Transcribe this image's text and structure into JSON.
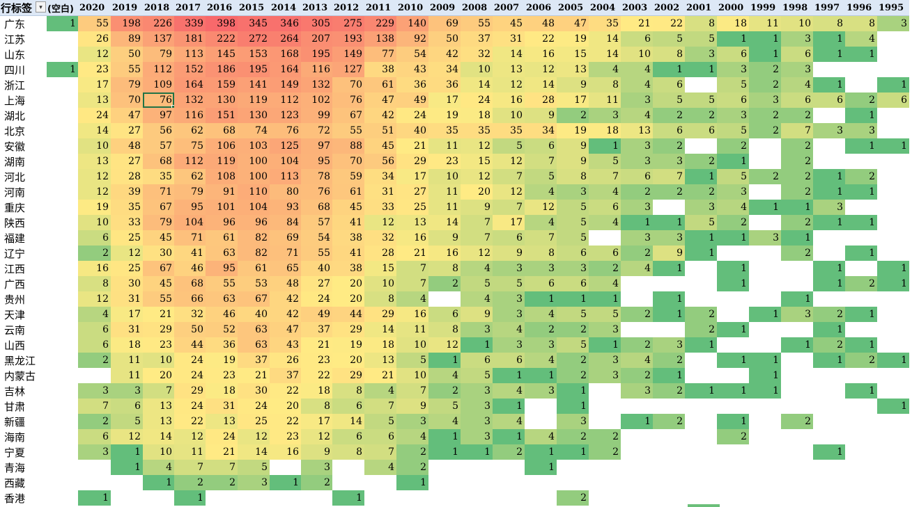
{
  "header": {
    "corner_label": "行标签",
    "filter_icon": "filter-dropdown-icon",
    "blank_label": "(空白)",
    "years": [
      "2020",
      "2019",
      "2018",
      "2017",
      "2016",
      "2015",
      "2014",
      "2013",
      "2012",
      "2011",
      "2010",
      "2009",
      "2008",
      "2007",
      "2006",
      "2005",
      "2004",
      "2003",
      "2002",
      "2001",
      "2000",
      "1999",
      "1998",
      "1997",
      "1996",
      "1995"
    ]
  },
  "rows": [
    {
      "label": "广东",
      "values": [
        1,
        55,
        198,
        226,
        339,
        398,
        345,
        346,
        305,
        275,
        229,
        140,
        69,
        55,
        45,
        48,
        47,
        35,
        21,
        22,
        8,
        18,
        11,
        10,
        8,
        8,
        3
      ]
    },
    {
      "label": "江苏",
      "values": [
        null,
        26,
        89,
        137,
        181,
        222,
        272,
        264,
        207,
        193,
        138,
        92,
        50,
        37,
        31,
        22,
        19,
        14,
        6,
        5,
        5,
        1,
        1,
        3,
        1,
        4,
        null
      ]
    },
    {
      "label": "山东",
      "values": [
        null,
        12,
        50,
        79,
        113,
        145,
        153,
        168,
        195,
        149,
        77,
        54,
        42,
        32,
        14,
        16,
        15,
        14,
        10,
        8,
        3,
        6,
        1,
        6,
        1,
        1,
        null
      ]
    },
    {
      "label": "四川",
      "values": [
        1,
        23,
        55,
        112,
        152,
        186,
        195,
        164,
        116,
        127,
        38,
        43,
        34,
        10,
        13,
        12,
        13,
        4,
        4,
        1,
        1,
        3,
        2,
        3,
        null,
        null,
        null
      ]
    },
    {
      "label": "浙江",
      "values": [
        null,
        17,
        79,
        109,
        164,
        159,
        141,
        149,
        132,
        70,
        61,
        36,
        36,
        14,
        12,
        14,
        9,
        8,
        4,
        6,
        null,
        5,
        2,
        4,
        1,
        null,
        1
      ]
    },
    {
      "label": "上海",
      "values": [
        null,
        13,
        70,
        76,
        132,
        130,
        119,
        112,
        102,
        76,
        47,
        49,
        17,
        24,
        16,
        28,
        17,
        11,
        3,
        5,
        5,
        6,
        3,
        6,
        6,
        2,
        6
      ]
    },
    {
      "label": "湖北",
      "values": [
        null,
        24,
        47,
        97,
        116,
        151,
        130,
        123,
        99,
        67,
        42,
        24,
        19,
        18,
        10,
        9,
        2,
        3,
        4,
        2,
        2,
        3,
        2,
        2,
        null,
        1,
        null
      ]
    },
    {
      "label": "北京",
      "values": [
        null,
        14,
        27,
        56,
        62,
        68,
        74,
        76,
        72,
        55,
        51,
        40,
        35,
        35,
        35,
        34,
        19,
        18,
        13,
        6,
        6,
        5,
        2,
        7,
        3,
        3,
        null
      ]
    },
    {
      "label": "安徽",
      "values": [
        null,
        10,
        48,
        57,
        75,
        106,
        103,
        125,
        97,
        88,
        45,
        21,
        11,
        12,
        5,
        6,
        9,
        1,
        3,
        2,
        null,
        2,
        null,
        2,
        null,
        1,
        1
      ]
    },
    {
      "label": "湖南",
      "values": [
        null,
        13,
        27,
        68,
        112,
        119,
        100,
        104,
        95,
        70,
        56,
        29,
        23,
        15,
        12,
        7,
        9,
        5,
        3,
        3,
        2,
        1,
        null,
        2,
        null,
        null,
        null
      ]
    },
    {
      "label": "河北",
      "values": [
        null,
        12,
        28,
        35,
        62,
        108,
        100,
        113,
        78,
        59,
        34,
        17,
        10,
        12,
        7,
        5,
        8,
        7,
        6,
        7,
        1,
        5,
        2,
        2,
        1,
        2,
        null
      ]
    },
    {
      "label": "河南",
      "values": [
        null,
        12,
        39,
        71,
        79,
        91,
        110,
        80,
        76,
        61,
        31,
        27,
        11,
        20,
        12,
        4,
        3,
        4,
        2,
        2,
        2,
        3,
        null,
        2,
        1,
        1,
        null
      ]
    },
    {
      "label": "重庆",
      "values": [
        null,
        19,
        35,
        67,
        95,
        101,
        104,
        93,
        68,
        45,
        33,
        25,
        11,
        9,
        7,
        12,
        5,
        6,
        3,
        null,
        3,
        4,
        1,
        1,
        3,
        null,
        null
      ]
    },
    {
      "label": "陕西",
      "values": [
        null,
        10,
        33,
        79,
        104,
        96,
        96,
        84,
        57,
        41,
        12,
        13,
        14,
        7,
        17,
        4,
        5,
        4,
        1,
        1,
        5,
        2,
        null,
        2,
        1,
        1,
        null
      ]
    },
    {
      "label": "福建",
      "values": [
        null,
        6,
        25,
        45,
        71,
        61,
        82,
        69,
        54,
        38,
        32,
        16,
        9,
        7,
        6,
        7,
        5,
        null,
        3,
        3,
        1,
        1,
        3,
        1,
        null,
        null,
        null
      ]
    },
    {
      "label": "辽宁",
      "values": [
        null,
        2,
        12,
        30,
        41,
        63,
        82,
        71,
        55,
        41,
        28,
        21,
        16,
        12,
        9,
        8,
        6,
        6,
        2,
        9,
        1,
        null,
        null,
        2,
        null,
        1,
        null
      ]
    },
    {
      "label": "江西",
      "values": [
        null,
        16,
        25,
        67,
        46,
        95,
        61,
        65,
        40,
        38,
        15,
        7,
        8,
        4,
        3,
        3,
        3,
        2,
        4,
        1,
        null,
        1,
        null,
        null,
        1,
        null,
        1
      ]
    },
    {
      "label": "广西",
      "values": [
        null,
        8,
        30,
        45,
        68,
        55,
        53,
        48,
        27,
        20,
        10,
        7,
        2,
        5,
        5,
        6,
        6,
        4,
        null,
        null,
        null,
        1,
        null,
        null,
        1,
        2,
        1
      ]
    },
    {
      "label": "贵州",
      "values": [
        null,
        12,
        31,
        55,
        66,
        63,
        67,
        42,
        24,
        20,
        8,
        4,
        null,
        4,
        3,
        1,
        1,
        1,
        null,
        1,
        null,
        null,
        null,
        1,
        null,
        null,
        null
      ]
    },
    {
      "label": "天津",
      "values": [
        null,
        4,
        17,
        21,
        32,
        46,
        40,
        42,
        49,
        44,
        29,
        16,
        6,
        9,
        3,
        4,
        5,
        5,
        2,
        1,
        2,
        null,
        1,
        3,
        2,
        1,
        null
      ]
    },
    {
      "label": "云南",
      "values": [
        null,
        6,
        31,
        29,
        50,
        52,
        63,
        47,
        37,
        29,
        14,
        11,
        8,
        3,
        4,
        2,
        2,
        3,
        null,
        null,
        2,
        1,
        null,
        null,
        1,
        null,
        null
      ]
    },
    {
      "label": "山西",
      "values": [
        null,
        6,
        18,
        23,
        44,
        36,
        63,
        43,
        21,
        19,
        18,
        10,
        12,
        1,
        3,
        3,
        5,
        1,
        2,
        3,
        1,
        null,
        null,
        1,
        2,
        1,
        null
      ]
    },
    {
      "label": "黑龙江",
      "values": [
        null,
        2,
        11,
        10,
        24,
        19,
        37,
        26,
        23,
        20,
        13,
        5,
        1,
        6,
        6,
        4,
        2,
        3,
        4,
        2,
        null,
        1,
        1,
        null,
        1,
        2,
        1
      ]
    },
    {
      "label": "内蒙古",
      "values": [
        null,
        null,
        11,
        20,
        24,
        23,
        21,
        37,
        22,
        29,
        21,
        10,
        4,
        5,
        1,
        1,
        2,
        3,
        2,
        1,
        null,
        null,
        1,
        null,
        null,
        null,
        null
      ]
    },
    {
      "label": "吉林",
      "values": [
        null,
        3,
        3,
        7,
        29,
        18,
        30,
        22,
        18,
        8,
        4,
        7,
        2,
        3,
        4,
        3,
        1,
        null,
        3,
        2,
        1,
        1,
        1,
        null,
        null,
        1,
        null
      ]
    },
    {
      "label": "甘肃",
      "values": [
        null,
        7,
        6,
        13,
        24,
        31,
        24,
        20,
        8,
        6,
        7,
        9,
        5,
        3,
        1,
        null,
        1,
        null,
        null,
        null,
        null,
        null,
        null,
        null,
        null,
        null,
        1
      ]
    },
    {
      "label": "新疆",
      "values": [
        null,
        2,
        5,
        13,
        22,
        13,
        25,
        22,
        17,
        14,
        5,
        3,
        4,
        3,
        4,
        null,
        3,
        null,
        1,
        2,
        null,
        1,
        null,
        2,
        null,
        null,
        null
      ]
    },
    {
      "label": "海南",
      "values": [
        null,
        6,
        12,
        14,
        12,
        24,
        12,
        23,
        12,
        6,
        6,
        4,
        1,
        3,
        1,
        4,
        2,
        2,
        null,
        null,
        null,
        2,
        null,
        null,
        null,
        null,
        null
      ]
    },
    {
      "label": "宁夏",
      "values": [
        null,
        3,
        1,
        10,
        11,
        21,
        14,
        16,
        9,
        8,
        7,
        2,
        1,
        1,
        2,
        1,
        1,
        2,
        null,
        null,
        null,
        null,
        null,
        null,
        1,
        null,
        null
      ]
    },
    {
      "label": "青海",
      "values": [
        null,
        null,
        1,
        4,
        7,
        7,
        5,
        null,
        3,
        null,
        4,
        2,
        null,
        null,
        null,
        1,
        null,
        null,
        null,
        null,
        null,
        null,
        null,
        null,
        null,
        null,
        null
      ]
    },
    {
      "label": "西藏",
      "values": [
        null,
        null,
        null,
        1,
        2,
        2,
        3,
        1,
        2,
        null,
        null,
        1,
        null,
        null,
        null,
        null,
        null,
        null,
        null,
        null,
        null,
        null,
        null,
        null,
        null,
        null,
        null
      ]
    },
    {
      "label": "香港",
      "values": [
        null,
        1,
        null,
        null,
        1,
        null,
        null,
        null,
        null,
        1,
        null,
        null,
        null,
        null,
        null,
        null,
        2,
        null,
        null,
        null,
        null,
        null,
        null,
        null,
        null,
        null,
        null
      ]
    }
  ],
  "selection": {
    "row": 5,
    "col": 3
  },
  "colors": {
    "header_bg": "#dde8f6",
    "low": "#63be7b",
    "mid": "#ffeb84",
    "high": "#f8696b",
    "selection": "#217346"
  }
}
